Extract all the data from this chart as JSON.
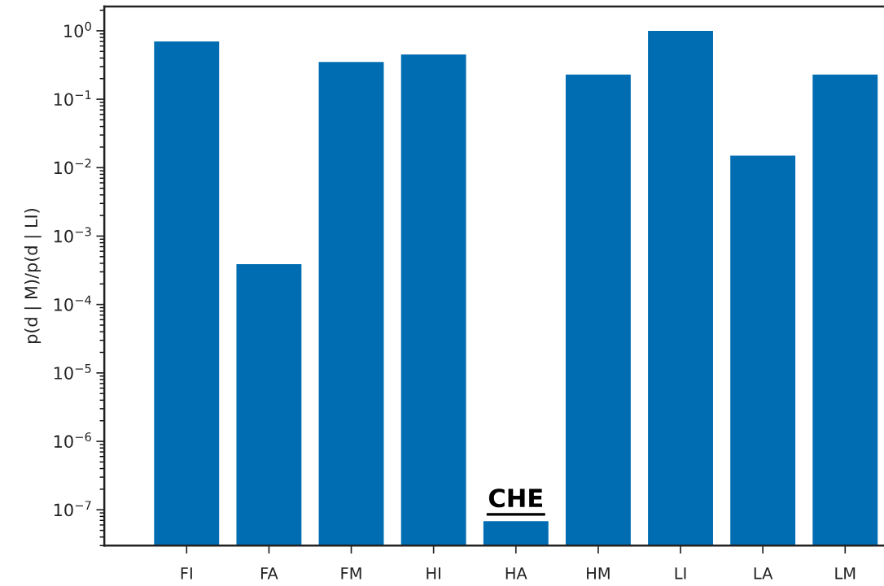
{
  "chart_data": {
    "type": "bar",
    "ylabel": "p(d | M)/p(d | LI)",
    "categories": [
      "FI",
      "FA",
      "FM",
      "HI",
      "HA",
      "HM",
      "LI",
      "LA",
      "LM"
    ],
    "values": [
      0.7,
      0.00039,
      0.35,
      0.45,
      6.8e-08,
      0.23,
      1.0,
      0.015,
      0.23
    ],
    "color": "#006db3",
    "log": "y",
    "ylim": [
      3e-08,
      2.27
    ],
    "yticks": [
      {
        "value": 1,
        "label": "10$^{0}$"
      },
      {
        "value": 0.1,
        "label": "10$^{−1}$"
      },
      {
        "value": 0.01,
        "label": "10$^{−2}$"
      },
      {
        "value": 0.001,
        "label": "10$^{−3}$"
      },
      {
        "value": 0.0001,
        "label": "10$^{−4}$"
      },
      {
        "value": 1e-05,
        "label": "10$^{−5}$"
      },
      {
        "value": 1e-06,
        "label": "10$^{−6}$"
      },
      {
        "value": 1e-07,
        "label": "10$^{−7}$"
      }
    ],
    "grid": false,
    "annotations": [
      {
        "text": "CHE",
        "x": "HA",
        "y": 6.8e-08
      }
    ]
  }
}
